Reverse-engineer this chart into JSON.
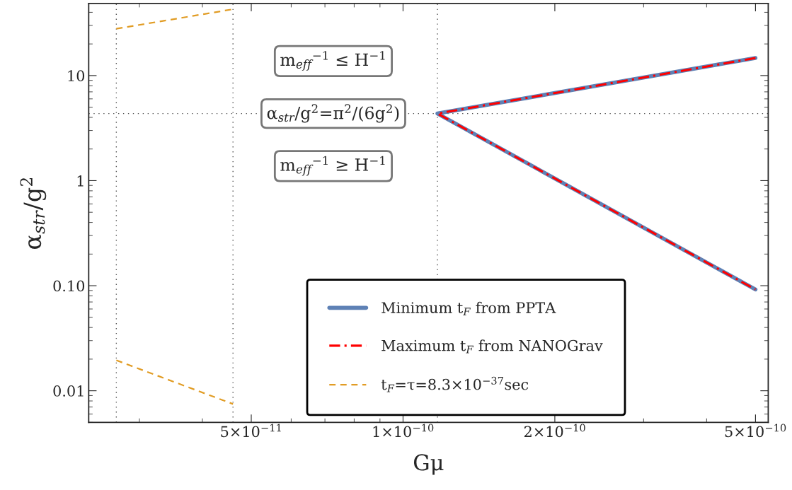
{
  "chart_data": {
    "type": "line",
    "xlabel": "Gμ",
    "ylabel": "α$_{str}$/g$^{2}$",
    "series": [
      {
        "name": "Minimum t$_{F}$ from PPTA",
        "color": "#5e81b5",
        "line_style": "solid",
        "x": [
          5e-10,
          1.17e-10,
          5e-10
        ],
        "values": [
          14.7,
          4.35,
          0.092
        ]
      },
      {
        "name": "Maximum t$_{F}$ from NANOGrav",
        "color": "#ff0000",
        "line_style": "dashdot",
        "x": [
          5e-10,
          1.17e-10,
          5e-10
        ],
        "values": [
          14.7,
          4.35,
          0.092
        ]
      },
      {
        "name": "t$_{F}$=τ=8.3×10$^{−37}$sec",
        "color": "#e19c24",
        "line_style": "dashed",
        "x": [
          2.7e-11,
          4.6e-11
        ],
        "values": [
          0.0195,
          0.00748
        ]
      },
      {
        "color": "#e19c24",
        "line_style": "dashed",
        "x": [
          2.7e-11,
          4.6e-11
        ],
        "values": [
          27.9,
          42.8
        ]
      }
    ],
    "log": "xy",
    "xlim": [
      2.38e-11,
      5.3e-10
    ],
    "ylim": [
      0.005,
      48.6
    ],
    "xticks": [
      {
        "value": 5e-11,
        "label": "5×10$^{−11}$"
      },
      {
        "value": 1e-10,
        "label": "1×10$^{−10}$"
      },
      {
        "value": 2e-10,
        "label": "2×10$^{−10}$"
      },
      {
        "value": 5e-10,
        "label": "5×10$^{−10}$"
      }
    ],
    "yticks": [
      0.01,
      {
        "value": 0.1,
        "label": "0.10"
      },
      1,
      10
    ],
    "ref_lines": [
      {
        "axis": "x",
        "value": 2.7e-11,
        "color": "#555555",
        "line_style": "dotted"
      },
      {
        "axis": "x",
        "value": 4.6e-11,
        "color": "#555555",
        "line_style": "dotted"
      },
      {
        "axis": "x",
        "value": 1.17e-10,
        "color": "#555555",
        "line_style": "dotted"
      },
      {
        "axis": "y",
        "value": 4.35,
        "color": "#555555",
        "line_style": "dotted",
        "label": "α$_{str}$/g$^{2}$=π$^{2}$/(6g$^{2}$)"
      }
    ],
    "annotations": [
      "m$_{eff}$$^{−1}$ ≤ H$^{−1}$",
      "m$_{eff}$$^{−1}$ ≥ H$^{−1}$"
    ],
    "marker": "none",
    "grid": false,
    "legend": "bottom right"
  }
}
